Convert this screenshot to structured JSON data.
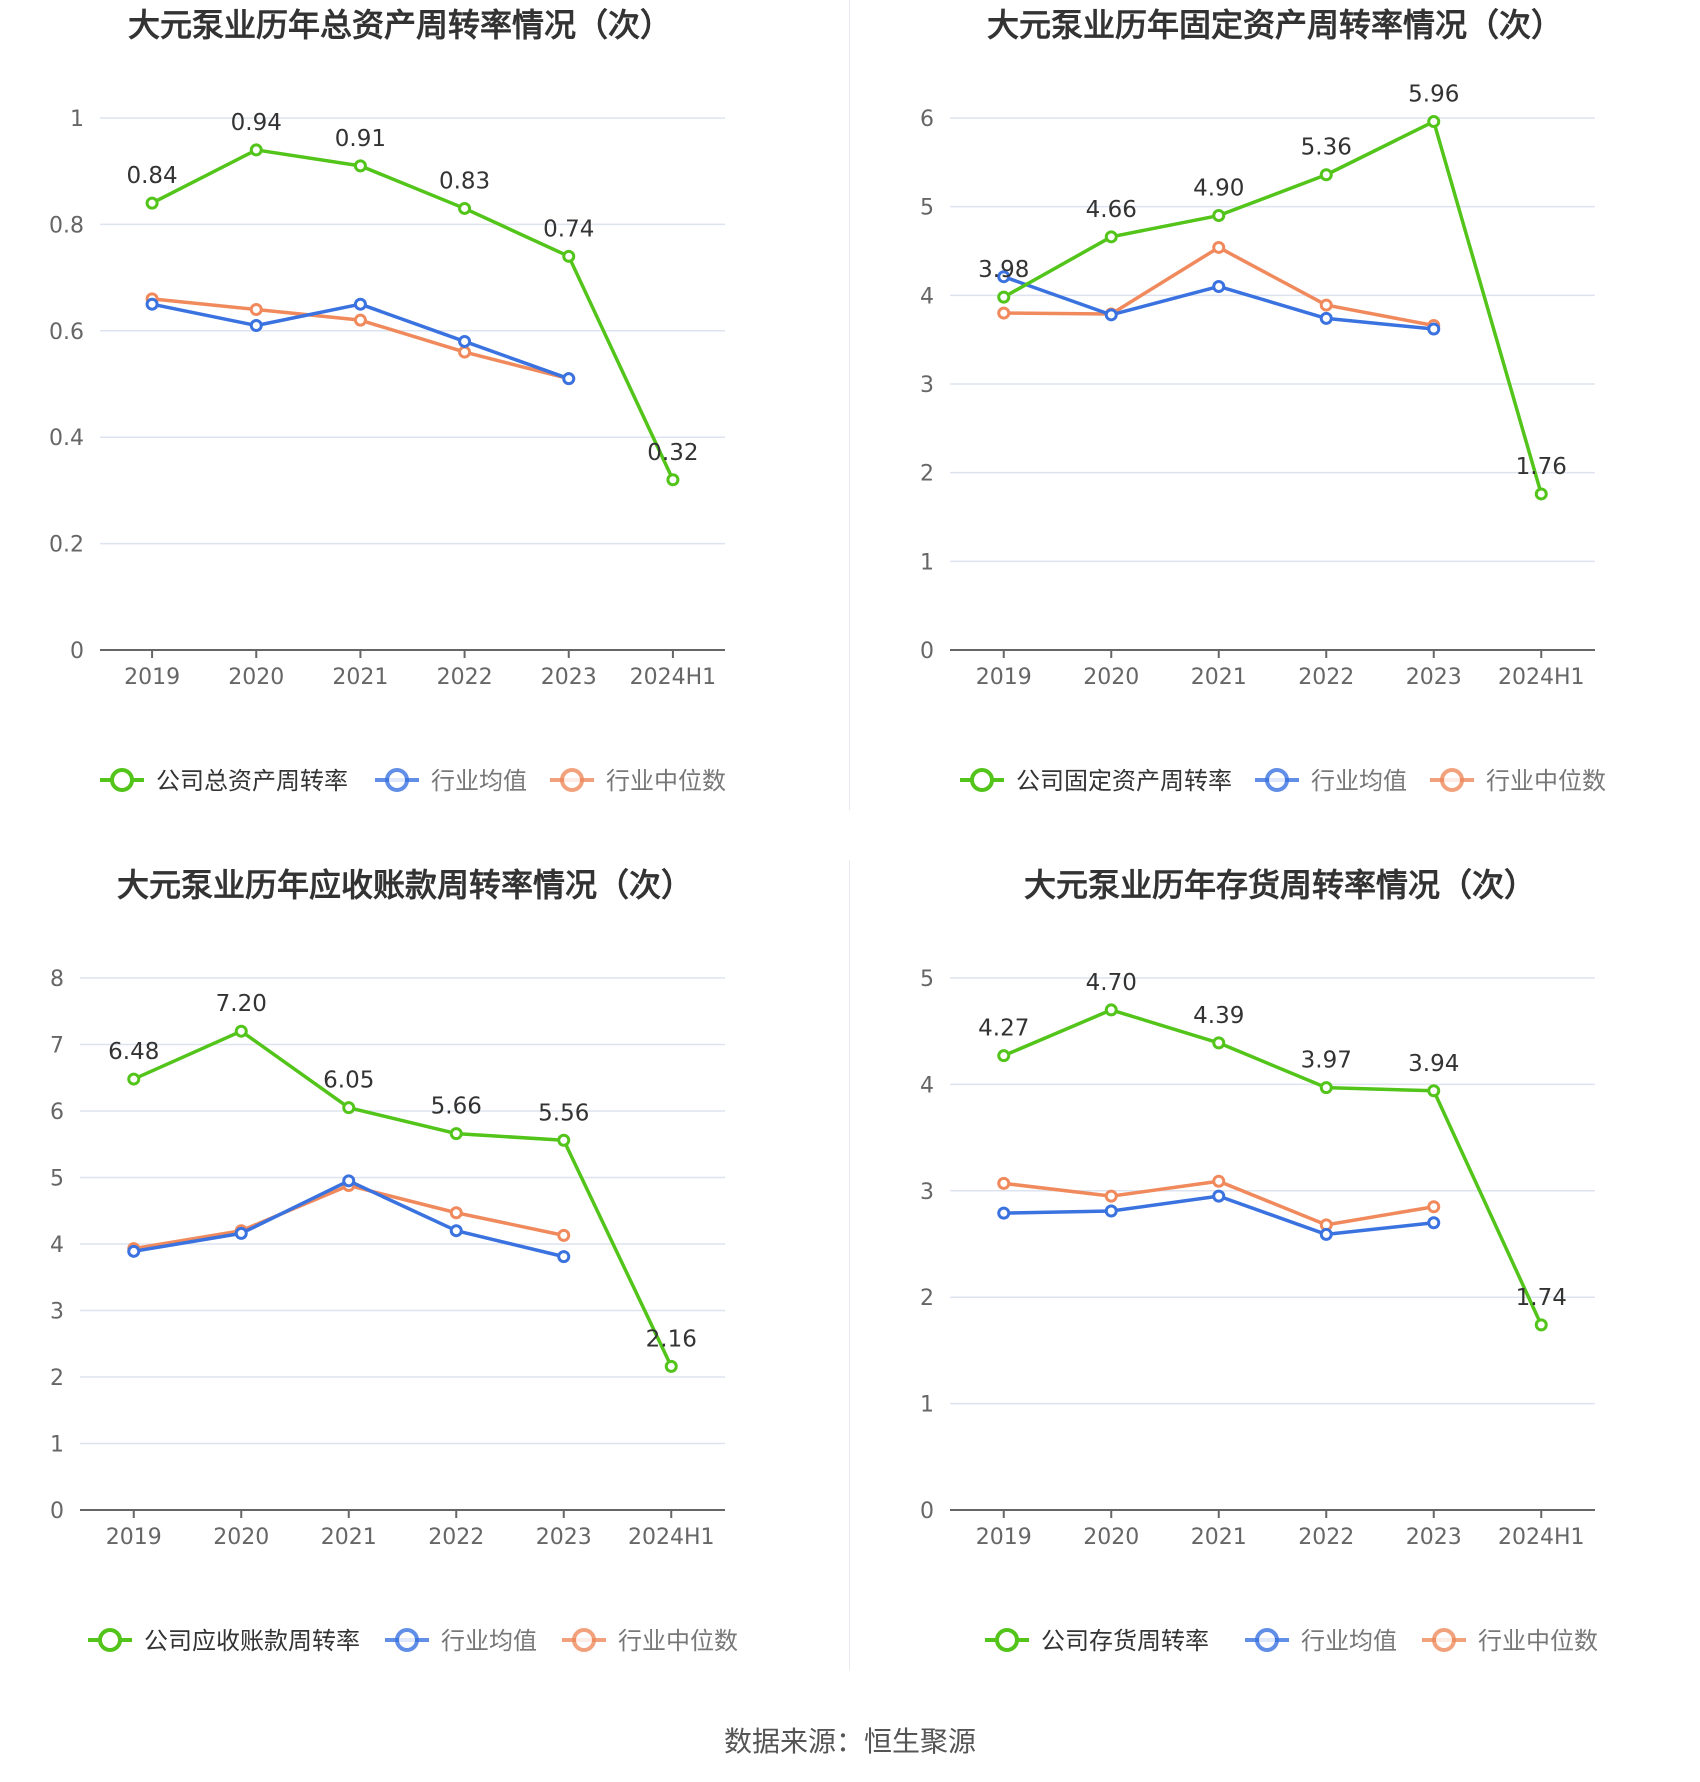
{
  "source": "数据来源：恒生聚源",
  "colors": {
    "company": "#52c41a",
    "avg": "#3a72e0",
    "median": "#f08a5d",
    "grid": "#dde3ef",
    "axis": "#666666"
  },
  "chart_data": [
    {
      "type": "line",
      "title": "大元泵业历年总资产周转率情况（次）",
      "categories": [
        "2019",
        "2020",
        "2021",
        "2022",
        "2023",
        "2024H1"
      ],
      "yticks": [
        "0",
        "0.2",
        "0.4",
        "0.6",
        "0.8",
        "1"
      ],
      "ylim": [
        0,
        1
      ],
      "series": [
        {
          "name": "公司总资产周转率",
          "values": [
            0.84,
            0.94,
            0.91,
            0.83,
            0.74,
            0.32
          ],
          "labels": [
            "0.84",
            "0.94",
            "0.91",
            "0.83",
            "0.74",
            "0.32"
          ]
        },
        {
          "name": "行业均值",
          "values": [
            0.65,
            0.61,
            0.65,
            0.58,
            0.51,
            null
          ]
        },
        {
          "name": "行业中位数",
          "values": [
            0.66,
            0.64,
            0.62,
            0.56,
            0.51,
            null
          ]
        }
      ]
    },
    {
      "type": "line",
      "title": "大元泵业历年固定资产周转率情况（次）",
      "categories": [
        "2019",
        "2020",
        "2021",
        "2022",
        "2023",
        "2024H1"
      ],
      "yticks": [
        "0",
        "1",
        "2",
        "3",
        "4",
        "5",
        "6"
      ],
      "ylim": [
        0,
        6
      ],
      "series": [
        {
          "name": "公司固定资产周转率",
          "values": [
            3.98,
            4.66,
            4.9,
            5.36,
            5.96,
            1.76
          ],
          "labels": [
            "3.98",
            "4.66",
            "4.90",
            "5.36",
            "5.96",
            "1.76"
          ]
        },
        {
          "name": "行业均值",
          "values": [
            4.21,
            3.78,
            4.1,
            3.74,
            3.62,
            null
          ]
        },
        {
          "name": "行业中位数",
          "values": [
            3.8,
            3.79,
            4.54,
            3.89,
            3.66,
            null
          ]
        }
      ]
    },
    {
      "type": "line",
      "title": "大元泵业历年应收账款周转率情况（次）",
      "categories": [
        "2019",
        "2020",
        "2021",
        "2022",
        "2023",
        "2024H1"
      ],
      "yticks": [
        "0",
        "1",
        "2",
        "3",
        "4",
        "5",
        "6",
        "7",
        "8"
      ],
      "ylim": [
        0,
        8
      ],
      "series": [
        {
          "name": "公司应收账款周转率",
          "values": [
            6.48,
            7.2,
            6.05,
            5.66,
            5.56,
            2.16
          ],
          "labels": [
            "6.48",
            "7.20",
            "6.05",
            "5.66",
            "5.56",
            "2.16"
          ]
        },
        {
          "name": "行业均值",
          "values": [
            3.89,
            4.16,
            4.95,
            4.2,
            3.81,
            null
          ]
        },
        {
          "name": "行业中位数",
          "values": [
            3.93,
            4.2,
            4.88,
            4.47,
            4.13,
            null
          ]
        }
      ]
    },
    {
      "type": "line",
      "title": "大元泵业历年存货周转率情况（次）",
      "categories": [
        "2019",
        "2020",
        "2021",
        "2022",
        "2023",
        "2024H1"
      ],
      "yticks": [
        "0",
        "1",
        "2",
        "3",
        "4",
        "5"
      ],
      "ylim": [
        0,
        5
      ],
      "series": [
        {
          "name": "公司存货周转率",
          "values": [
            4.27,
            4.7,
            4.39,
            3.97,
            3.94,
            1.74
          ],
          "labels": [
            "4.27",
            "4.70",
            "4.39",
            "3.97",
            "3.94",
            "1.74"
          ]
        },
        {
          "name": "行业均值",
          "values": [
            2.79,
            2.81,
            2.95,
            2.59,
            2.7,
            null
          ]
        },
        {
          "name": "行业中位数",
          "values": [
            3.07,
            2.95,
            3.09,
            2.68,
            2.85,
            null
          ]
        }
      ]
    }
  ]
}
